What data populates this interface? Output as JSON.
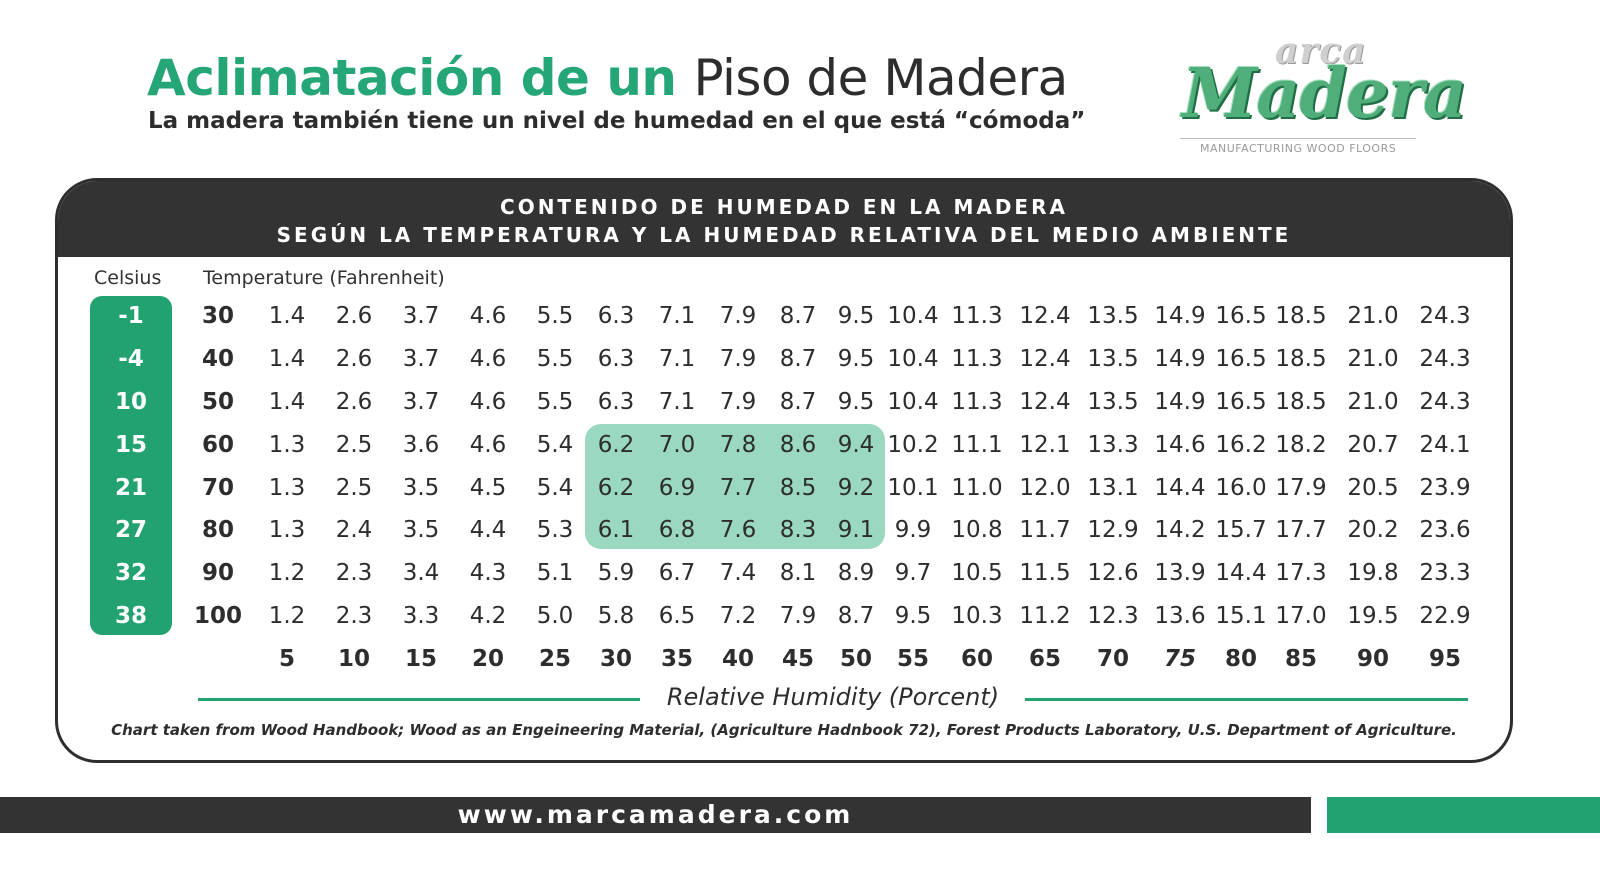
{
  "header": {
    "title_green": "Aclimatación de un",
    "title_dark": "Piso de Madera",
    "subtitle": "La madera también tiene un nivel de humedad en el que está “cómoda”"
  },
  "logo": {
    "top_word": "arca",
    "main_word": "Madera",
    "tagline": "MANUFACTURING WOOD FLOORS"
  },
  "card": {
    "heading_line1": "CONTENIDO DE HUMEDAD EN LA MADERA",
    "heading_line2": "SEGÚN LA TEMPERATURA Y LA HUMEDAD RELATIVA DEL MEDIO AMBIENTE",
    "celsius_label": "Celsius",
    "fahrenheit_label": "Temperature (Fahrenheit)",
    "rh_label": "Relative Humidity (Porcent)",
    "credit": "Chart taken from Wood Handbook; Wood as an Engeineering Material, (Agriculture Hadnbook 72), Forest Products Laboratory, U.S. Department of Agriculture."
  },
  "footer": {
    "url": "www.marcamadera.com"
  },
  "colors": {
    "accent_green": "#23a271",
    "highlight_green": "#9ad8c0",
    "dark": "#333333"
  },
  "chart_data": {
    "type": "table",
    "title": "CONTENIDO DE HUMEDAD EN LA MADERA SEGÚN LA TEMPERATURA Y LA HUMEDAD RELATIVA DEL MEDIO AMBIENTE",
    "celsius": [
      "-1",
      "-4",
      "10",
      "15",
      "21",
      "27",
      "32",
      "38"
    ],
    "fahrenheit": [
      "30",
      "40",
      "50",
      "60",
      "70",
      "80",
      "90",
      "100"
    ],
    "relative_humidity": [
      "5",
      "10",
      "15",
      "20",
      "25",
      "30",
      "35",
      "40",
      "45",
      "50",
      "55",
      "60",
      "65",
      "70",
      "75",
      "80",
      "85",
      "90",
      "95"
    ],
    "values": [
      [
        "1.4",
        "2.6",
        "3.7",
        "4.6",
        "5.5",
        "6.3",
        "7.1",
        "7.9",
        "8.7",
        "9.5",
        "10.4",
        "11.3",
        "12.4",
        "13.5",
        "14.9",
        "16.5",
        "18.5",
        "21.0",
        "24.3"
      ],
      [
        "1.4",
        "2.6",
        "3.7",
        "4.6",
        "5.5",
        "6.3",
        "7.1",
        "7.9",
        "8.7",
        "9.5",
        "10.4",
        "11.3",
        "12.4",
        "13.5",
        "14.9",
        "16.5",
        "18.5",
        "21.0",
        "24.3"
      ],
      [
        "1.4",
        "2.6",
        "3.7",
        "4.6",
        "5.5",
        "6.3",
        "7.1",
        "7.9",
        "8.7",
        "9.5",
        "10.4",
        "11.3",
        "12.4",
        "13.5",
        "14.9",
        "16.5",
        "18.5",
        "21.0",
        "24.3"
      ],
      [
        "1.3",
        "2.5",
        "3.6",
        "4.6",
        "5.4",
        "6.2",
        "7.0",
        "7.8",
        "8.6",
        "9.4",
        "10.2",
        "11.1",
        "12.1",
        "13.3",
        "14.6",
        "16.2",
        "18.2",
        "20.7",
        "24.1"
      ],
      [
        "1.3",
        "2.5",
        "3.5",
        "4.5",
        "5.4",
        "6.2",
        "6.9",
        "7.7",
        "8.5",
        "9.2",
        "10.1",
        "11.0",
        "12.0",
        "13.1",
        "14.4",
        "16.0",
        "17.9",
        "20.5",
        "23.9"
      ],
      [
        "1.3",
        "2.4",
        "3.5",
        "4.4",
        "5.3",
        "6.1",
        "6.8",
        "7.6",
        "8.3",
        "9.1",
        "9.9",
        "10.8",
        "11.7",
        "12.9",
        "14.2",
        "15.7",
        "17.7",
        "20.2",
        "23.6"
      ],
      [
        "1.2",
        "2.3",
        "3.4",
        "4.3",
        "5.1",
        "5.9",
        "6.7",
        "7.4",
        "8.1",
        "8.9",
        "9.7",
        "10.5",
        "11.5",
        "12.6",
        "13.9",
        "14.4",
        "17.3",
        "19.8",
        "23.3"
      ],
      [
        "1.2",
        "2.3",
        "3.3",
        "4.2",
        "5.0",
        "5.8",
        "6.5",
        "7.2",
        "7.9",
        "8.7",
        "9.5",
        "10.3",
        "11.2",
        "12.3",
        "13.6",
        "15.1",
        "17.0",
        "19.5",
        "22.9"
      ]
    ],
    "highlight": {
      "rows": [
        "60",
        "70",
        "80"
      ],
      "humidity": [
        "30",
        "35",
        "40",
        "45",
        "50"
      ]
    },
    "italic_humidity": [
      "75"
    ]
  }
}
